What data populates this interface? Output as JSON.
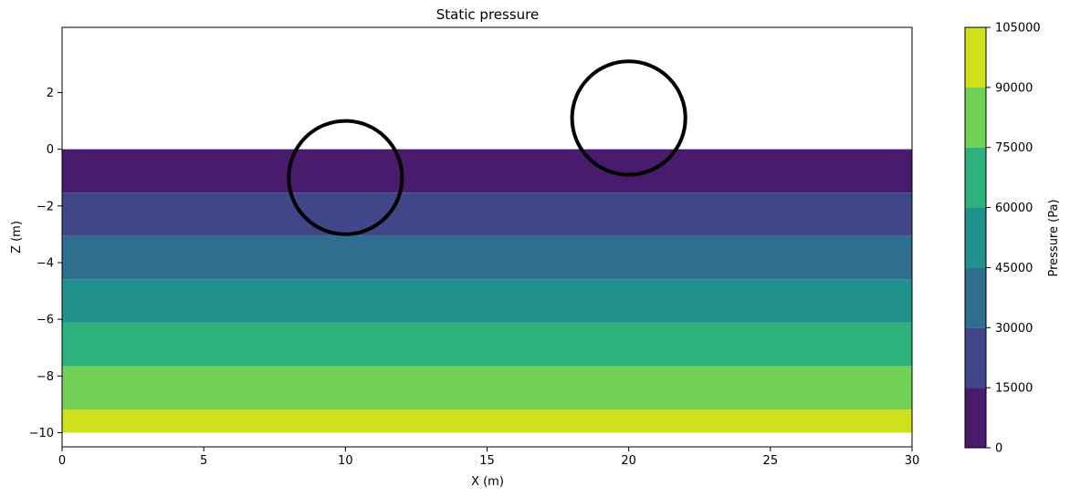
{
  "chart_data": {
    "type": "heatmap",
    "subtype": "filled-contour",
    "title": "Static pressure",
    "xlabel": "X (m)",
    "ylabel": "Z (m)",
    "xlim": [
      0,
      30
    ],
    "ylim": [
      -10.5,
      4.3
    ],
    "xticks": [
      0,
      5,
      10,
      15,
      20,
      25,
      30
    ],
    "yticks": [
      2,
      0,
      -2,
      -4,
      -6,
      -8,
      -10
    ],
    "yticks_display": [
      "2",
      "0",
      "−2",
      "−4",
      "−6",
      "−8",
      "−10"
    ],
    "grid": false,
    "field": {
      "x_range": [
        0,
        30
      ],
      "z_range": [
        -10,
        0
      ],
      "bands": [
        {
          "z_top": 0,
          "z_bottom": -1.53,
          "level_range": [
            0,
            15000
          ],
          "color": "#481b6d"
        },
        {
          "z_top": -1.53,
          "z_bottom": -3.06,
          "level_range": [
            15000,
            30000
          ],
          "color": "#3f4788"
        },
        {
          "z_top": -3.06,
          "z_bottom": -4.59,
          "level_range": [
            30000,
            45000
          ],
          "color": "#2e6e8e"
        },
        {
          "z_top": -4.59,
          "z_bottom": -6.12,
          "level_range": [
            45000,
            60000
          ],
          "color": "#21918c"
        },
        {
          "z_top": -6.12,
          "z_bottom": -7.65,
          "level_range": [
            60000,
            75000
          ],
          "color": "#2db27d"
        },
        {
          "z_top": -7.65,
          "z_bottom": -9.18,
          "level_range": [
            75000,
            90000
          ],
          "color": "#73d056"
        },
        {
          "z_top": -9.18,
          "z_bottom": -10,
          "level_range": [
            90000,
            105000
          ],
          "color": "#d0e11c"
        }
      ]
    },
    "annotations": [
      {
        "shape": "circle",
        "center": [
          10,
          -1
        ],
        "radius": 2,
        "color": "#000000"
      },
      {
        "shape": "circle",
        "center": [
          20,
          1.1
        ],
        "radius": 2,
        "color": "#000000"
      }
    ],
    "colorbar": {
      "label": "Pressure (Pa)",
      "levels": [
        0,
        15000,
        30000,
        45000,
        60000,
        75000,
        90000,
        105000
      ],
      "tick_labels": [
        "0",
        "15000",
        "30000",
        "45000",
        "60000",
        "75000",
        "90000",
        "105000"
      ],
      "colors": [
        "#481b6d",
        "#3f4788",
        "#2e6e8e",
        "#21918c",
        "#2db27d",
        "#73d056",
        "#d0e11c"
      ]
    }
  }
}
